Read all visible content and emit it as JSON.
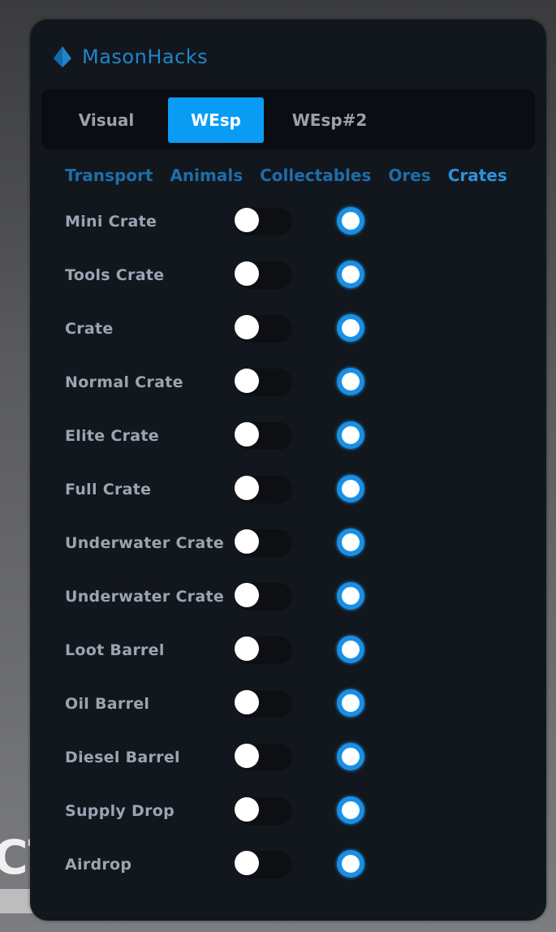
{
  "background": {
    "text": "CT"
  },
  "app": {
    "title": "MasonHacks",
    "accent": "#0a9cf5"
  },
  "tabs": [
    {
      "label": "Visual",
      "active": false
    },
    {
      "label": "WEsp",
      "active": true
    },
    {
      "label": "WEsp#2",
      "active": false
    }
  ],
  "subtabs": [
    {
      "label": "Transport",
      "active": false
    },
    {
      "label": "Animals",
      "active": false
    },
    {
      "label": "Collectables",
      "active": false
    },
    {
      "label": "Ores",
      "active": false
    },
    {
      "label": "Crates",
      "active": true
    }
  ],
  "items": [
    {
      "label": "Mini Crate",
      "toggle": false,
      "radio": true
    },
    {
      "label": "Tools Crate",
      "toggle": false,
      "radio": true
    },
    {
      "label": "Crate",
      "toggle": false,
      "radio": true
    },
    {
      "label": "Normal Crate",
      "toggle": false,
      "radio": true
    },
    {
      "label": "Elite Crate",
      "toggle": false,
      "radio": true
    },
    {
      "label": "Full Crate",
      "toggle": false,
      "radio": true
    },
    {
      "label": "Underwater Crate",
      "toggle": false,
      "radio": true
    },
    {
      "label": "Underwater Crate",
      "toggle": false,
      "radio": true
    },
    {
      "label": "Loot Barrel",
      "toggle": false,
      "radio": true
    },
    {
      "label": "Oil Barrel",
      "toggle": false,
      "radio": true
    },
    {
      "label": "Diesel Barrel",
      "toggle": false,
      "radio": true
    },
    {
      "label": "Supply Drop",
      "toggle": false,
      "radio": true
    },
    {
      "label": "Airdrop",
      "toggle": false,
      "radio": true
    }
  ]
}
